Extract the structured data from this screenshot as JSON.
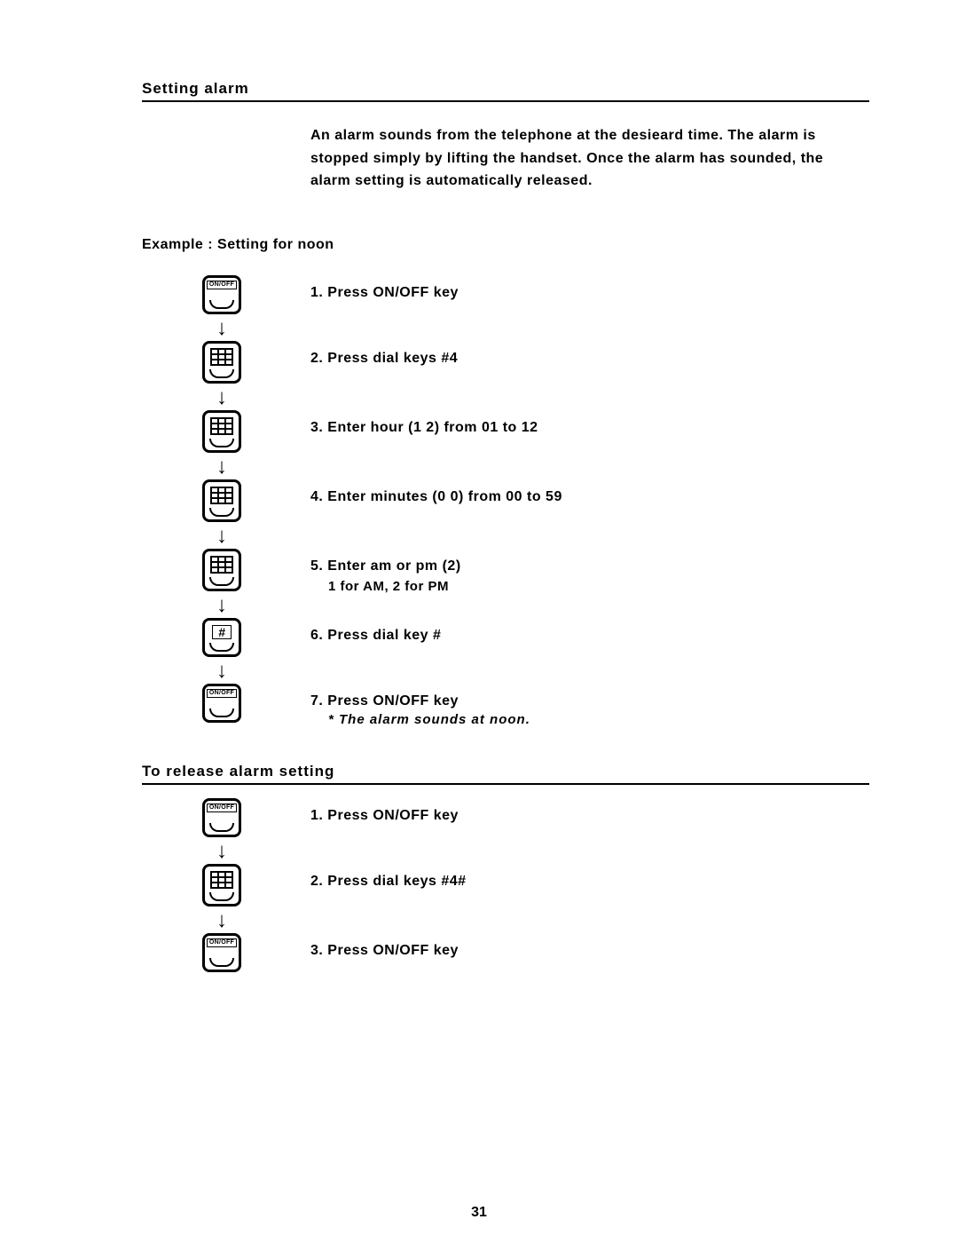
{
  "section1": {
    "title": "Setting  alarm",
    "intro": "An alarm sounds from the telephone at the desieard time. The alarm is stopped simply by lifting the handset. Once the alarm has sounded, the alarm setting is automatically released.",
    "example_title": "Example : Setting for noon",
    "steps": [
      {
        "icon": "onoff",
        "text": "1.  Press  ON/OFF  key"
      },
      {
        "icon": "keypad",
        "text": "2. Press dial keys #4"
      },
      {
        "icon": "keypad",
        "text": "3.  Enter  hour  (1  2)  from  01  to  12"
      },
      {
        "icon": "keypad",
        "text": "4.  Enter  minutes  (0  0)  from  00  to  59"
      },
      {
        "icon": "keypad",
        "text": "5.  Enter am or pm (2)",
        "sub": "1  for  AM,  2  for  PM"
      },
      {
        "icon": "hash",
        "text": "6.  Press  dial  key  #"
      },
      {
        "icon": "onoff",
        "text": "7.  Press  ON/OFF  key",
        "note": "*   The  alarm  sounds  at  noon."
      }
    ]
  },
  "section2": {
    "title": "To  release  alarm  setting",
    "steps": [
      {
        "icon": "onoff",
        "text": "1.  Press  ON/OFF  key"
      },
      {
        "icon": "keypad",
        "text": "2. Press dial keys #4#"
      },
      {
        "icon": "onoff",
        "text": "3.  Press  ON/OFF  key"
      }
    ]
  },
  "page_number": "31",
  "icon_labels": {
    "onoff": "ON/OFF",
    "hash": "#"
  },
  "style": {
    "font_main": "Arial, Helvetica, sans-serif",
    "text_color": "#000000",
    "bg_color": "#ffffff",
    "title_fontsize": 17,
    "body_fontsize": 16,
    "border_color": "#000000"
  }
}
